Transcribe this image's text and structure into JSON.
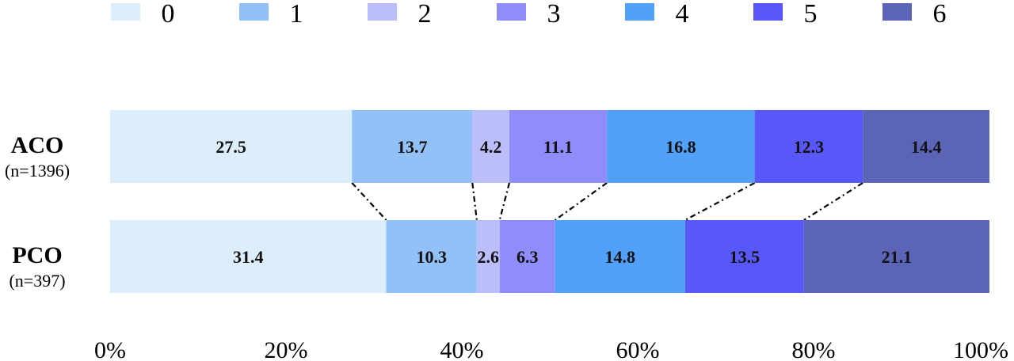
{
  "chart_data": {
    "type": "bar",
    "orientation": "horizontal",
    "stacked": true,
    "normalized_percent": true,
    "legend": {
      "placement": "top",
      "entries": [
        {
          "label": "0",
          "color": "#dceefb"
        },
        {
          "label": "1",
          "color": "#92c1f8"
        },
        {
          "label": "2",
          "color": "#bcbdfb"
        },
        {
          "label": "3",
          "color": "#8e8df9"
        },
        {
          "label": "4",
          "color": "#51a1fa"
        },
        {
          "label": "5",
          "color": "#5857f8"
        },
        {
          "label": "6",
          "color": "#5c64b8"
        }
      ]
    },
    "categories": [
      {
        "name": "ACO",
        "n_label": "(n=1396)",
        "values": [
          27.5,
          13.7,
          4.2,
          11.1,
          16.8,
          12.3,
          14.4
        ],
        "value_labels": [
          "27.5",
          "13.7",
          "4.2",
          "11.1",
          "16.8",
          "12.3",
          "14.4"
        ]
      },
      {
        "name": "PCO",
        "n_label": "(n=397)",
        "values": [
          31.4,
          10.3,
          2.6,
          6.3,
          14.8,
          13.5,
          21.1
        ],
        "value_labels": [
          "31.4",
          "10.3",
          "2.6",
          "6.3",
          "14.8",
          "13.5",
          "21.1"
        ]
      }
    ],
    "x_ticks": [
      "0%",
      "20%",
      "40%",
      "60%",
      "80%",
      "100%"
    ],
    "xlim": [
      0,
      100
    ],
    "grid": false,
    "connector_lines": "dash-dot between cumulative boundaries of the two bars"
  }
}
